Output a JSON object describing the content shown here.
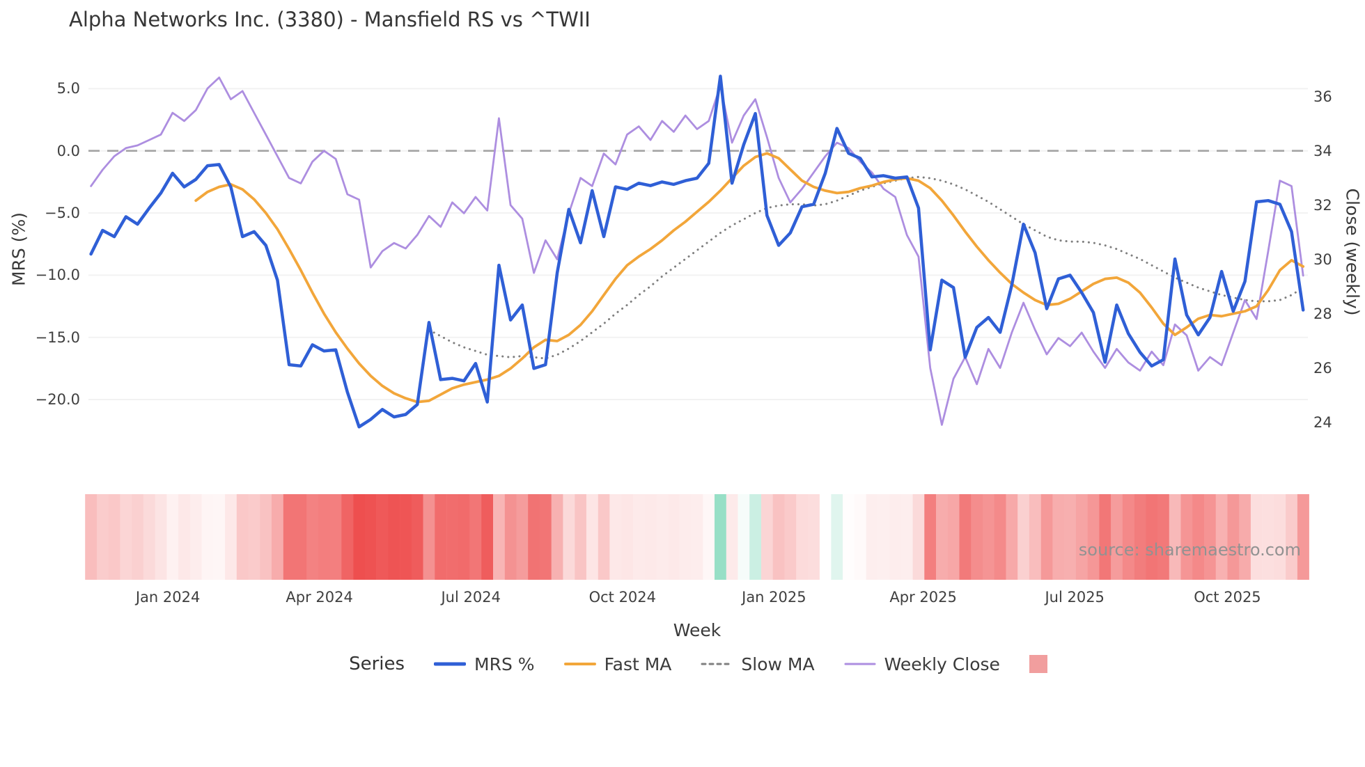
{
  "title": "Alpha Networks Inc. (3380) - Mansfield RS vs ^TWII",
  "source": "source: sharemaestro.com",
  "axes": {
    "left": {
      "label": "MRS (%)",
      "tick_values": [
        5,
        0,
        -5,
        -10,
        -15,
        -20
      ],
      "tick_labels": [
        "5.0",
        "0.0",
        "−5.0",
        "−10.0",
        "−15.0",
        "−20.0"
      ]
    },
    "right": {
      "label": "Close (weekly)",
      "tick_values": [
        36,
        34,
        32,
        30,
        28,
        26,
        24
      ],
      "tick_labels": [
        "36",
        "34",
        "32",
        "30",
        "28",
        "26",
        "24"
      ]
    },
    "x": {
      "label": "Week"
    }
  },
  "legend": {
    "title": "Series",
    "items": [
      {
        "label": "MRS %",
        "color": "#2f5fd6",
        "dash": "solid",
        "thickness": 5
      },
      {
        "label": "Fast MA",
        "color": "#f2a63a",
        "dash": "solid",
        "thickness": 4
      },
      {
        "label": "Slow MA",
        "color": "#7f7f7f",
        "dash": "dotted",
        "thickness": 3
      },
      {
        "label": "Weekly Close",
        "color": "#ad8ee0",
        "dash": "solid",
        "thickness": 3
      }
    ],
    "heatmap_swatch_color": "#f19e9e"
  },
  "chart_data": {
    "type": "line",
    "x_unit": "weekly index, Nov 2023 – Nov 2025",
    "n_points": 105,
    "x_ticks": [
      {
        "label": "Jan 2024",
        "week": 6.6
      },
      {
        "label": "Apr 2024",
        "week": 19.6
      },
      {
        "label": "Jul 2024",
        "week": 32.6
      },
      {
        "label": "Oct 2024",
        "week": 45.6
      },
      {
        "label": "Jan 2025",
        "week": 58.6
      },
      {
        "label": "Apr 2025",
        "week": 71.4
      },
      {
        "label": "Jul 2025",
        "week": 84.4
      },
      {
        "label": "Oct 2025",
        "week": 97.5
      }
    ],
    "left_axis_range": [
      -24.6,
      7.4
    ],
    "right_axis_range": [
      23.4,
      37.2
    ],
    "zero_reference": {
      "axis": "left",
      "value": 0.0,
      "style": "dashed",
      "color": "#a3a3a3"
    },
    "series": [
      {
        "name": "MRS %",
        "axis": "left",
        "color": "#2f5fd6",
        "style": "solid",
        "width": 4.5,
        "values": [
          -8.3,
          -6.4,
          -6.9,
          -5.3,
          -5.9,
          -4.6,
          -3.4,
          -1.8,
          -2.9,
          -2.3,
          -1.2,
          -1.1,
          -2.9,
          -6.9,
          -6.5,
          -7.6,
          -10.4,
          -17.2,
          -17.3,
          -15.6,
          -16.1,
          -16.0,
          -19.4,
          -22.2,
          -21.6,
          -20.8,
          -21.4,
          -21.2,
          -20.4,
          -13.8,
          -18.4,
          -18.3,
          -18.5,
          -17.1,
          -20.2,
          -9.2,
          -13.6,
          -12.4,
          -17.5,
          -17.2,
          -9.8,
          -4.7,
          -7.4,
          -3.2,
          -6.9,
          -2.9,
          -3.1,
          -2.6,
          -2.8,
          -2.5,
          -2.7,
          -2.4,
          -2.2,
          -1.0,
          6.0,
          -2.6,
          0.5,
          3.0,
          -5.2,
          -7.6,
          -6.6,
          -4.5,
          -4.3,
          -1.8,
          1.8,
          -0.2,
          -0.6,
          -2.1,
          -2.0,
          -2.2,
          -2.1,
          -4.6,
          -16.0,
          -10.4,
          -11.0,
          -16.6,
          -14.2,
          -13.4,
          -14.6,
          -10.8,
          -5.9,
          -8.2,
          -12.7,
          -10.3,
          -10.0,
          -11.4,
          -13.0,
          -17.0,
          -12.4,
          -14.7,
          -16.2,
          -17.3,
          -16.8,
          -8.7,
          -13.2,
          -14.8,
          -13.4,
          -9.7,
          -12.9,
          -10.5,
          -4.1,
          -4.0,
          -4.3,
          -6.5,
          -12.8
        ]
      },
      {
        "name": "Fast MA",
        "axis": "left",
        "color": "#f2a63a",
        "style": "solid",
        "width": 3.8,
        "values": [
          null,
          null,
          null,
          null,
          null,
          null,
          null,
          null,
          null,
          -4.0,
          -3.3,
          -2.9,
          -2.7,
          -3.1,
          -3.9,
          -5.0,
          -6.3,
          -7.9,
          -9.6,
          -11.4,
          -13.1,
          -14.6,
          -15.9,
          -17.1,
          -18.1,
          -18.9,
          -19.5,
          -19.9,
          -20.2,
          -20.1,
          -19.6,
          -19.1,
          -18.8,
          -18.6,
          -18.4,
          -18.1,
          -17.5,
          -16.7,
          -15.8,
          -15.2,
          -15.3,
          -14.8,
          -14.0,
          -12.9,
          -11.6,
          -10.3,
          -9.2,
          -8.5,
          -7.9,
          -7.2,
          -6.4,
          -5.7,
          -4.9,
          -4.1,
          -3.2,
          -2.2,
          -1.2,
          -0.5,
          -0.2,
          -0.6,
          -1.5,
          -2.4,
          -2.9,
          -3.2,
          -3.4,
          -3.3,
          -3.0,
          -2.8,
          -2.5,
          -2.3,
          -2.2,
          -2.4,
          -3.0,
          -4.0,
          -5.2,
          -6.5,
          -7.7,
          -8.8,
          -9.8,
          -10.7,
          -11.4,
          -12.0,
          -12.4,
          -12.3,
          -11.9,
          -11.3,
          -10.7,
          -10.3,
          -10.2,
          -10.6,
          -11.4,
          -12.6,
          -13.9,
          -14.8,
          -14.2,
          -13.5,
          -13.2,
          -13.3,
          -13.1,
          -12.9,
          -12.5,
          -11.2,
          -9.6,
          -8.8,
          -9.3
        ]
      },
      {
        "name": "Slow MA",
        "axis": "left",
        "color": "#7f7f7f",
        "style": "dotted",
        "width": 3,
        "values": [
          null,
          null,
          null,
          null,
          null,
          null,
          null,
          null,
          null,
          null,
          null,
          null,
          null,
          null,
          null,
          null,
          null,
          null,
          null,
          null,
          null,
          null,
          null,
          null,
          null,
          null,
          null,
          null,
          null,
          -14.4,
          -14.9,
          -15.4,
          -15.8,
          -16.1,
          -16.4,
          -16.5,
          -16.6,
          -16.5,
          -16.6,
          -16.7,
          -16.4,
          -15.9,
          -15.3,
          -14.6,
          -13.9,
          -13.1,
          -12.4,
          -11.6,
          -10.9,
          -10.1,
          -9.4,
          -8.7,
          -8.0,
          -7.3,
          -6.6,
          -6.0,
          -5.5,
          -5.0,
          -4.6,
          -4.4,
          -4.3,
          -4.3,
          -4.4,
          -4.3,
          -4.0,
          -3.6,
          -3.2,
          -2.9,
          -2.6,
          -2.4,
          -2.2,
          -2.1,
          -2.2,
          -2.4,
          -2.7,
          -3.1,
          -3.6,
          -4.1,
          -4.7,
          -5.3,
          -5.9,
          -6.4,
          -6.9,
          -7.2,
          -7.3,
          -7.3,
          -7.4,
          -7.6,
          -7.9,
          -8.3,
          -8.7,
          -9.2,
          -9.7,
          -10.2,
          -10.6,
          -11.0,
          -11.3,
          -11.6,
          -11.8,
          -12.0,
          -12.1,
          -12.1,
          -12.0,
          -11.6,
          -11.0
        ]
      },
      {
        "name": "Weekly Close",
        "axis": "right",
        "color": "#ad8ee0",
        "style": "solid",
        "width": 2.8,
        "values": [
          32.7,
          33.3,
          33.8,
          34.1,
          34.2,
          34.4,
          34.6,
          35.4,
          35.1,
          35.5,
          36.3,
          36.7,
          35.9,
          36.2,
          35.4,
          34.6,
          33.8,
          33.0,
          32.8,
          33.6,
          34.0,
          33.7,
          32.4,
          32.2,
          29.7,
          30.3,
          30.6,
          30.4,
          30.9,
          31.6,
          31.2,
          32.1,
          31.7,
          32.3,
          31.8,
          35.2,
          32.0,
          31.5,
          29.5,
          30.7,
          30.0,
          31.7,
          33.0,
          32.7,
          33.9,
          33.5,
          34.6,
          34.9,
          34.4,
          35.1,
          34.7,
          35.3,
          34.8,
          35.1,
          36.4,
          34.3,
          35.3,
          35.9,
          34.5,
          33.0,
          32.1,
          32.6,
          33.2,
          33.8,
          34.3,
          34.1,
          33.6,
          33.2,
          32.6,
          32.3,
          30.9,
          30.1,
          26.0,
          23.9,
          25.6,
          26.4,
          25.4,
          26.7,
          26.0,
          27.3,
          28.4,
          27.4,
          26.5,
          27.1,
          26.8,
          27.3,
          26.6,
          26.0,
          26.7,
          26.2,
          25.9,
          26.6,
          26.1,
          27.6,
          27.2,
          25.9,
          26.4,
          26.1,
          27.3,
          28.5,
          27.8,
          30.3,
          32.9,
          32.7,
          29.4
        ]
      }
    ],
    "heatmap": {
      "description": "weekly strip below chart: red = negative MRS %, green = positive MRS %, white = missing week",
      "source_series": "MRS %",
      "missing_weeks": [
        63
      ],
      "negative_color": "#ee4f4f",
      "positive_color": "#52c9a0"
    }
  }
}
